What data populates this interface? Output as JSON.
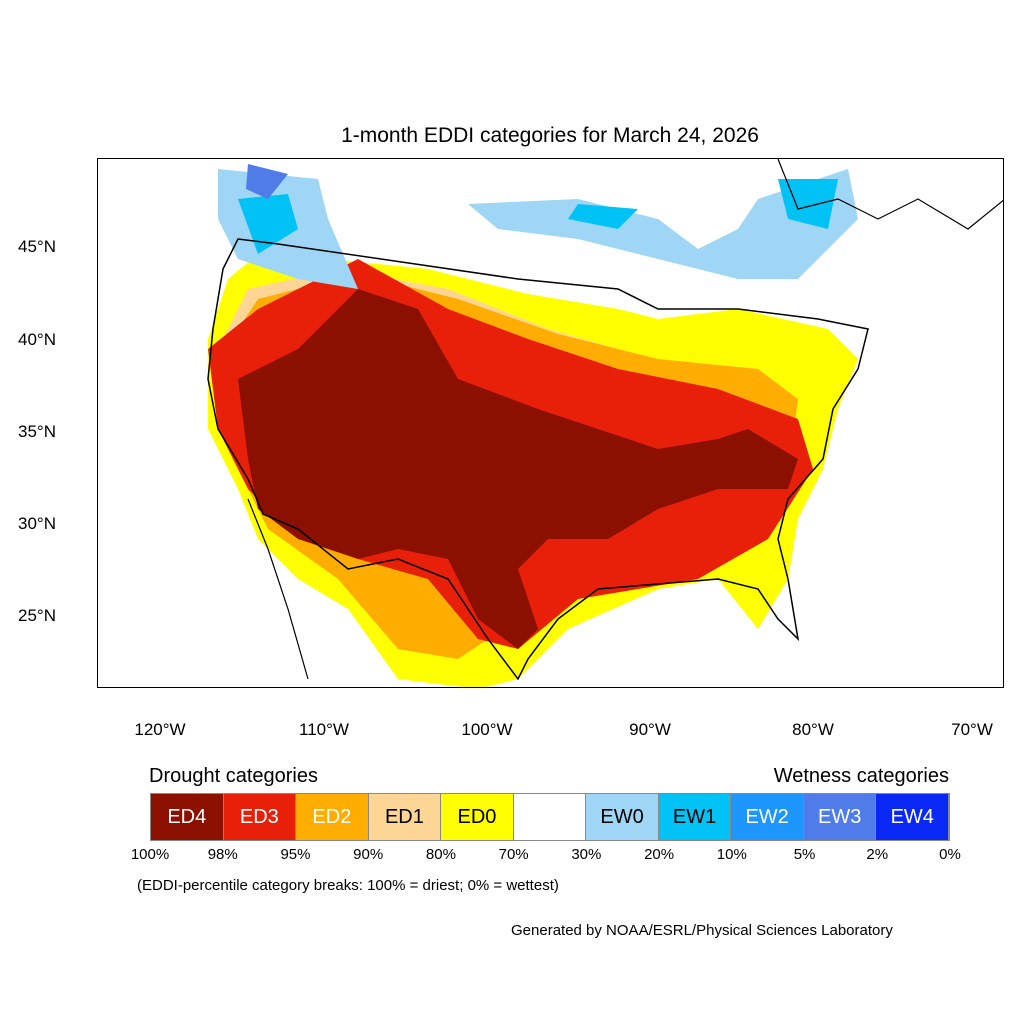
{
  "title": "1-month EDDI categories for March 24, 2026",
  "lat_labels": [
    "45°N",
    "40°N",
    "35°N",
    "30°N",
    "25°N"
  ],
  "lon_labels": [
    "120°W",
    "110°W",
    "100°W",
    "90°W",
    "80°W",
    "70°W"
  ],
  "legend": {
    "drought_heading": "Drought categories",
    "wetness_heading": "Wetness categories",
    "categories": [
      {
        "label": "ED4",
        "color": "#8b1000",
        "text_color": "#ffffff"
      },
      {
        "label": "ED3",
        "color": "#e8200a",
        "text_color": "#ffffff"
      },
      {
        "label": "ED2",
        "color": "#ffad00",
        "text_color": "#ffffff"
      },
      {
        "label": "ED1",
        "color": "#fdd595",
        "text_color": "#000000"
      },
      {
        "label": "ED0",
        "color": "#ffff00",
        "text_color": "#000000"
      },
      {
        "label": "",
        "color": "#ffffff",
        "text_color": "#000000"
      },
      {
        "label": "EW0",
        "color": "#9fd5f5",
        "text_color": "#000000"
      },
      {
        "label": "EW1",
        "color": "#00c2f5",
        "text_color": "#000000"
      },
      {
        "label": "EW2",
        "color": "#1e96ff",
        "text_color": "#ffffff"
      },
      {
        "label": "EW3",
        "color": "#4f7ce8",
        "text_color": "#ffffff"
      },
      {
        "label": "EW4",
        "color": "#0a28f5",
        "text_color": "#ffffff"
      }
    ],
    "breaks": [
      "100%",
      "98%",
      "95%",
      "90%",
      "80%",
      "70%",
      "30%",
      "20%",
      "10%",
      "5%",
      "2%",
      "0%"
    ],
    "note": "(EDDI-percentile category breaks: 100% = driest; 0% = wettest)"
  },
  "credit": "Generated by NOAA/ESRL/Physical Sciences Laboratory"
}
